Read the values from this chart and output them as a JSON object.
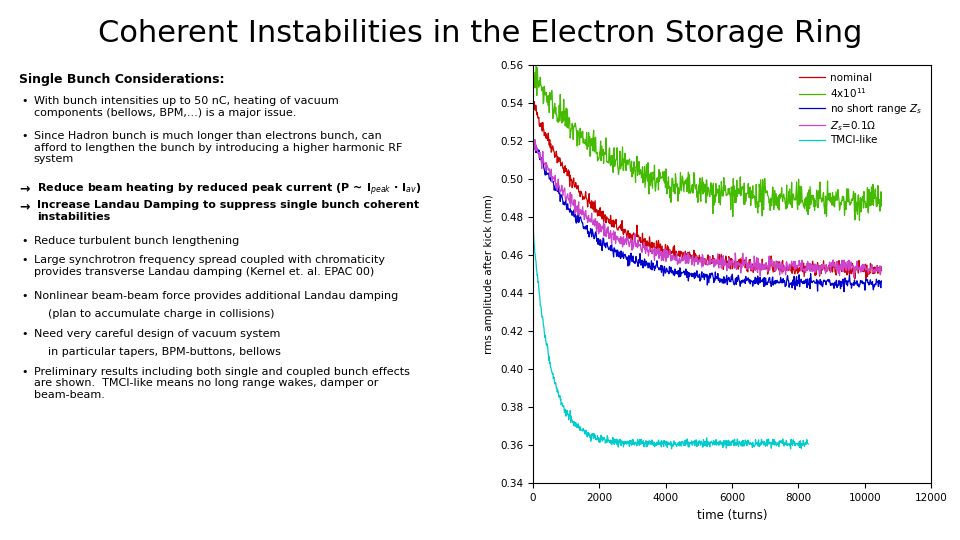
{
  "title": "Coherent Instabilities in the Electron Storage Ring",
  "title_fontsize": 22,
  "bg_color": "#ffffff",
  "text_color": "#000000",
  "heading": "Single Bunch Considerations:",
  "plot": {
    "xlabel": "time (turns)",
    "ylabel": "rms amplitude after kick (mm)",
    "xlim": [
      0,
      12000
    ],
    "ylim": [
      0.34,
      0.56
    ],
    "yticks": [
      0.34,
      0.36,
      0.38,
      0.4,
      0.42,
      0.44,
      0.46,
      0.48,
      0.5,
      0.52,
      0.54,
      0.56
    ],
    "xticks": [
      0,
      2000,
      4000,
      6000,
      8000,
      10000,
      12000
    ],
    "legend_entries": [
      {
        "label": "nominal",
        "color": "#cc0000"
      },
      {
        "label": "4x10$^{11}$",
        "color": "#44bb00"
      },
      {
        "label": "no short range $Z_s$",
        "color": "#0000cc"
      },
      {
        "label": "$Z_s$=0.1Ω",
        "color": "#cc44cc"
      },
      {
        "label": "TMCI-like",
        "color": "#00cccc"
      }
    ]
  }
}
